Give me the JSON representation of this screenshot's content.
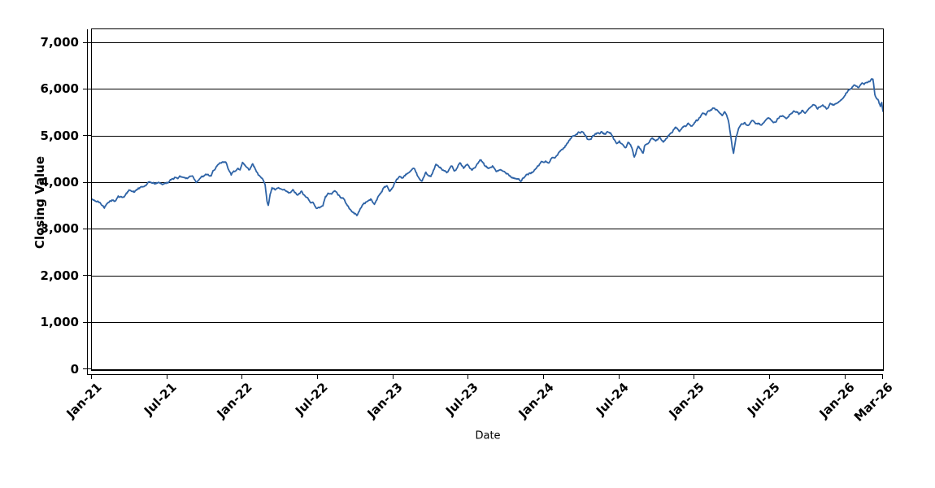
{
  "chart_data": {
    "type": "line",
    "title": "",
    "xlabel": "Date",
    "ylabel": "Closing Value",
    "legend": "none",
    "grid": "horizontal-black-lines",
    "background_color": "#ffffff",
    "line_color": "#2e63a6",
    "axis_color": "#000000",
    "ylim": [
      0,
      7280
    ],
    "xlim_months_from_jan_2021": [
      0,
      63
    ],
    "x_axis": {
      "start": "Jan-2021",
      "end": "Mar-2026",
      "unit": "months",
      "tick_interval": "6 months"
    },
    "y_ticks": [
      {
        "value": 0,
        "label": "0"
      },
      {
        "value": 1000,
        "label": "1,000"
      },
      {
        "value": 2000,
        "label": "2,000"
      },
      {
        "value": 3000,
        "label": "3,000"
      },
      {
        "value": 4000,
        "label": "4,000"
      },
      {
        "value": 5000,
        "label": "5,000"
      },
      {
        "value": 6000,
        "label": "6,000"
      },
      {
        "value": 7000,
        "label": "7,000"
      }
    ],
    "x_ticks": [
      {
        "m": 0,
        "label": "Jan-21"
      },
      {
        "m": 6,
        "label": "Jul-21"
      },
      {
        "m": 12,
        "label": "Jan-22"
      },
      {
        "m": 18,
        "label": "Jul-22"
      },
      {
        "m": 24,
        "label": "Jan-23"
      },
      {
        "m": 30,
        "label": "Jul-23"
      },
      {
        "m": 36,
        "label": "Jan-24"
      },
      {
        "m": 42,
        "label": "Jul-24"
      },
      {
        "m": 48,
        "label": "Jan-25"
      },
      {
        "m": 54,
        "label": "Jul-25"
      },
      {
        "m": 60,
        "label": "Jan-26"
      },
      {
        "m": 63,
        "label": "Mar-26"
      }
    ],
    "series": [
      {
        "name": "Closing Value",
        "x_unit": "months since Jan-2021",
        "points": [
          [
            0,
            3640
          ],
          [
            0.2,
            3615
          ],
          [
            0.5,
            3590
          ],
          [
            0.8,
            3505
          ],
          [
            1,
            3445
          ],
          [
            1.3,
            3565
          ],
          [
            1.6,
            3620
          ],
          [
            1.8,
            3590
          ],
          [
            2.1,
            3705
          ],
          [
            2.4,
            3675
          ],
          [
            2.8,
            3765
          ],
          [
            3.1,
            3820
          ],
          [
            3.4,
            3790
          ],
          [
            3.7,
            3875
          ],
          [
            4.1,
            3905
          ],
          [
            4.4,
            3965
          ],
          [
            4.7,
            3990
          ],
          [
            5,
            3965
          ],
          [
            5.4,
            3990
          ],
          [
            5.7,
            3965
          ],
          [
            6,
            3995
          ],
          [
            6.3,
            4050
          ],
          [
            6.6,
            4105
          ],
          [
            7,
            4135
          ],
          [
            7.3,
            4105
          ],
          [
            7.6,
            4080
          ],
          [
            8,
            4135
          ],
          [
            8.3,
            3995
          ],
          [
            8.6,
            4080
          ],
          [
            8.9,
            4135
          ],
          [
            9.2,
            4165
          ],
          [
            9.5,
            4135
          ],
          [
            9.9,
            4330
          ],
          [
            10.4,
            4435
          ],
          [
            10.7,
            4415
          ],
          [
            10.9,
            4265
          ],
          [
            11.1,
            4155
          ],
          [
            11.3,
            4240
          ],
          [
            11.6,
            4295
          ],
          [
            11.8,
            4265
          ],
          [
            12,
            4425
          ],
          [
            12.2,
            4365
          ],
          [
            12.5,
            4265
          ],
          [
            12.8,
            4395
          ],
          [
            13.2,
            4195
          ],
          [
            13.5,
            4090
          ],
          [
            13.8,
            3945
          ],
          [
            13.95,
            3595
          ],
          [
            14.05,
            3505
          ],
          [
            14.2,
            3745
          ],
          [
            14.35,
            3885
          ],
          [
            14.6,
            3835
          ],
          [
            14.9,
            3875
          ],
          [
            15.2,
            3835
          ],
          [
            15.7,
            3775
          ],
          [
            16,
            3840
          ],
          [
            16.4,
            3725
          ],
          [
            16.7,
            3810
          ],
          [
            17,
            3695
          ],
          [
            17.3,
            3610
          ],
          [
            17.7,
            3525
          ],
          [
            17.9,
            3440
          ],
          [
            18.1,
            3455
          ],
          [
            18.4,
            3495
          ],
          [
            18.6,
            3695
          ],
          [
            19,
            3755
          ],
          [
            19.4,
            3805
          ],
          [
            19.6,
            3725
          ],
          [
            20,
            3665
          ],
          [
            20.3,
            3525
          ],
          [
            20.6,
            3410
          ],
          [
            20.8,
            3350
          ],
          [
            21,
            3325
          ],
          [
            21.1,
            3285
          ],
          [
            21.3,
            3380
          ],
          [
            21.6,
            3525
          ],
          [
            21.9,
            3585
          ],
          [
            22.2,
            3640
          ],
          [
            22.5,
            3525
          ],
          [
            22.8,
            3695
          ],
          [
            23.2,
            3870
          ],
          [
            23.5,
            3925
          ],
          [
            23.7,
            3810
          ],
          [
            23.9,
            3870
          ],
          [
            24.1,
            3985
          ],
          [
            24.5,
            4125
          ],
          [
            24.8,
            4100
          ],
          [
            25.1,
            4185
          ],
          [
            25.4,
            4245
          ],
          [
            25.6,
            4300
          ],
          [
            25.8,
            4215
          ],
          [
            26.1,
            4070
          ],
          [
            26.3,
            4025
          ],
          [
            26.6,
            4215
          ],
          [
            27,
            4125
          ],
          [
            27.4,
            4385
          ],
          [
            27.8,
            4295
          ],
          [
            28.3,
            4215
          ],
          [
            28.6,
            4345
          ],
          [
            28.9,
            4245
          ],
          [
            29.3,
            4415
          ],
          [
            29.6,
            4300
          ],
          [
            29.9,
            4385
          ],
          [
            30.3,
            4265
          ],
          [
            30.6,
            4350
          ],
          [
            31,
            4475
          ],
          [
            31.3,
            4350
          ],
          [
            31.6,
            4300
          ],
          [
            31.9,
            4350
          ],
          [
            32.2,
            4230
          ],
          [
            32.5,
            4265
          ],
          [
            32.9,
            4215
          ],
          [
            33.2,
            4155
          ],
          [
            33.5,
            4100
          ],
          [
            33.9,
            4075
          ],
          [
            34.2,
            4025
          ],
          [
            34.5,
            4125
          ],
          [
            34.8,
            4185
          ],
          [
            35.1,
            4215
          ],
          [
            35.5,
            4350
          ],
          [
            35.8,
            4445
          ],
          [
            36.1,
            4445
          ],
          [
            36.4,
            4415
          ],
          [
            36.7,
            4530
          ],
          [
            37,
            4565
          ],
          [
            37.6,
            4740
          ],
          [
            38,
            4900
          ],
          [
            38.4,
            5000
          ],
          [
            38.7,
            5060
          ],
          [
            39,
            5085
          ],
          [
            39.3,
            5000
          ],
          [
            39.6,
            4915
          ],
          [
            39.9,
            5000
          ],
          [
            40.3,
            5060
          ],
          [
            40.6,
            5085
          ],
          [
            40.9,
            5030
          ],
          [
            41.3,
            5060
          ],
          [
            41.6,
            4915
          ],
          [
            41.8,
            4830
          ],
          [
            42,
            4885
          ],
          [
            42.3,
            4800
          ],
          [
            42.5,
            4740
          ],
          [
            42.7,
            4855
          ],
          [
            43,
            4740
          ],
          [
            43.2,
            4540
          ],
          [
            43.3,
            4595
          ],
          [
            43.5,
            4770
          ],
          [
            43.7,
            4710
          ],
          [
            43.9,
            4625
          ],
          [
            44,
            4770
          ],
          [
            44.3,
            4830
          ],
          [
            44.6,
            4945
          ],
          [
            44.9,
            4885
          ],
          [
            45.2,
            4970
          ],
          [
            45.5,
            4860
          ],
          [
            45.9,
            5000
          ],
          [
            46.2,
            5060
          ],
          [
            46.5,
            5180
          ],
          [
            46.8,
            5090
          ],
          [
            47.2,
            5205
          ],
          [
            47.5,
            5265
          ],
          [
            47.8,
            5205
          ],
          [
            48.1,
            5320
          ],
          [
            48.3,
            5340
          ],
          [
            48.6,
            5470
          ],
          [
            48.9,
            5440
          ],
          [
            49.2,
            5525
          ],
          [
            49.6,
            5585
          ],
          [
            49.9,
            5520
          ],
          [
            50.2,
            5430
          ],
          [
            50.4,
            5510
          ],
          [
            50.7,
            5310
          ],
          [
            51,
            4740
          ],
          [
            51.1,
            4620
          ],
          [
            51.3,
            4965
          ],
          [
            51.6,
            5195
          ],
          [
            52,
            5280
          ],
          [
            52.3,
            5225
          ],
          [
            52.7,
            5310
          ],
          [
            53,
            5250
          ],
          [
            53.3,
            5225
          ],
          [
            53.6,
            5310
          ],
          [
            54,
            5365
          ],
          [
            54.3,
            5280
          ],
          [
            54.6,
            5365
          ],
          [
            55,
            5425
          ],
          [
            55.3,
            5365
          ],
          [
            55.6,
            5455
          ],
          [
            56,
            5510
          ],
          [
            56.3,
            5455
          ],
          [
            56.6,
            5540
          ],
          [
            56.9,
            5510
          ],
          [
            57.2,
            5600
          ],
          [
            57.5,
            5655
          ],
          [
            57.8,
            5570
          ],
          [
            58.2,
            5655
          ],
          [
            58.5,
            5570
          ],
          [
            58.8,
            5690
          ],
          [
            59.1,
            5655
          ],
          [
            59.4,
            5705
          ],
          [
            59.8,
            5795
          ],
          [
            60.1,
            5915
          ],
          [
            60.4,
            6000
          ],
          [
            60.7,
            6085
          ],
          [
            61,
            6035
          ],
          [
            61.4,
            6120
          ],
          [
            61.7,
            6140
          ],
          [
            62,
            6180
          ],
          [
            62.2,
            6210
          ],
          [
            62.35,
            5880
          ],
          [
            62.6,
            5775
          ],
          [
            62.8,
            5625
          ],
          [
            62.9,
            5710
          ],
          [
            63,
            5520
          ]
        ]
      }
    ],
    "render": {
      "points_per_month": 21,
      "noise_scale": 20,
      "noise_seed": 42,
      "line_width": 1.8
    }
  }
}
